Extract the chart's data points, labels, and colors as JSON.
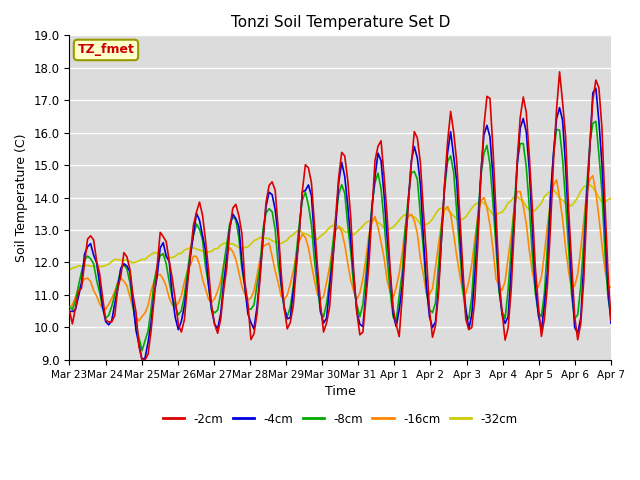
{
  "title": "Tonzi Soil Temperature Set D",
  "xlabel": "Time",
  "ylabel": "Soil Temperature (C)",
  "annotation": "TZ_fmet",
  "ylim": [
    9.0,
    19.0
  ],
  "yticks": [
    9.0,
    10.0,
    11.0,
    12.0,
    13.0,
    14.0,
    15.0,
    16.0,
    17.0,
    18.0,
    19.0
  ],
  "xtick_labels": [
    "Mar 23",
    "Mar 24",
    "Mar 25",
    "Mar 26",
    "Mar 27",
    "Mar 28",
    "Mar 29",
    "Mar 30",
    "Mar 31",
    "Apr 1",
    "Apr 2",
    "Apr 3",
    "Apr 4",
    "Apr 5",
    "Apr 6",
    "Apr 7"
  ],
  "series": {
    "-2cm": {
      "color": "#dd0000",
      "lw": 1.2
    },
    "-4cm": {
      "color": "#0000dd",
      "lw": 1.2
    },
    "-8cm": {
      "color": "#00aa00",
      "lw": 1.2
    },
    "-16cm": {
      "color": "#ff8800",
      "lw": 1.2
    },
    "-32cm": {
      "color": "#cccc00",
      "lw": 1.2
    }
  },
  "plot_bg_color": "#dcdcdc",
  "fig_bg_color": "#ffffff",
  "grid_color": "#ffffff"
}
